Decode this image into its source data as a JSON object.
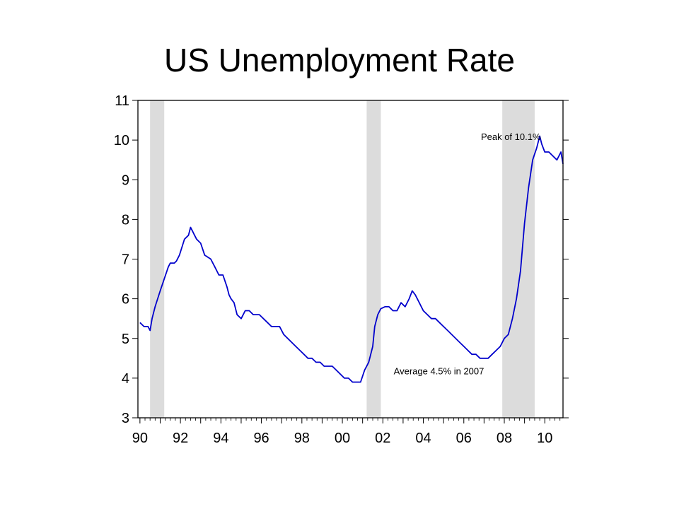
{
  "slide": {
    "title": "US Unemployment Rate"
  },
  "chart_data": {
    "type": "line",
    "title": "US Unemployment Rate",
    "xlabel": "",
    "ylabel": "",
    "xlim": [
      1989.9,
      2010.9
    ],
    "ylim": [
      3,
      11
    ],
    "x_tick_labels": [
      {
        "x": 1990,
        "label": "90"
      },
      {
        "x": 1992,
        "label": "92"
      },
      {
        "x": 1994,
        "label": "94"
      },
      {
        "x": 1996,
        "label": "96"
      },
      {
        "x": 1998,
        "label": "98"
      },
      {
        "x": 2000,
        "label": "00"
      },
      {
        "x": 2002,
        "label": "02"
      },
      {
        "x": 2004,
        "label": "04"
      },
      {
        "x": 2006,
        "label": "06"
      },
      {
        "x": 2008,
        "label": "08"
      },
      {
        "x": 2010,
        "label": "10"
      }
    ],
    "y_ticks": [
      3,
      4,
      5,
      6,
      7,
      8,
      9,
      10,
      11
    ],
    "line_color": "#0000cc",
    "recession_color": "#dcdcdc",
    "recessions": [
      [
        1990.5,
        1991.2
      ],
      [
        2001.2,
        2001.9
      ],
      [
        2007.9,
        2009.5
      ]
    ],
    "annotations": [
      {
        "text": "Peak of 10.1%",
        "x": 2009.8,
        "y": 10.0
      },
      {
        "text": "Average 4.5% in 2007",
        "x": 2007.0,
        "y": 4.1
      }
    ],
    "series": [
      {
        "x": [
          1990.0,
          1990.2,
          1990.4,
          1990.5,
          1990.6,
          1990.75,
          1991.0,
          1991.2,
          1991.4,
          1991.5,
          1991.7,
          1991.8,
          1991.95,
          1992.2,
          1992.4,
          1992.5,
          1992.6,
          1992.7,
          1992.8,
          1993.0,
          1993.2,
          1993.5,
          1993.7,
          1993.9,
          1994.1,
          1994.3,
          1994.4,
          1994.5,
          1994.65,
          1994.8,
          1995.0,
          1995.2,
          1995.4,
          1995.6,
          1995.8,
          1995.9,
          1996.1,
          1996.3,
          1996.5,
          1996.7,
          1996.9,
          1997.1,
          1997.3,
          1997.5,
          1997.7,
          1997.9,
          1998.1,
          1998.3,
          1998.5,
          1998.7,
          1998.9,
          1999.1,
          1999.3,
          1999.5,
          1999.7,
          1999.9,
          2000.1,
          2000.3,
          2000.5,
          2000.7,
          2000.9,
          2001.1,
          2001.3,
          2001.5,
          2001.6,
          2001.75,
          2001.9,
          2002.1,
          2002.3,
          2002.5,
          2002.7,
          2002.9,
          2003.1,
          2003.3,
          2003.45,
          2003.6,
          2003.8,
          2004.0,
          2004.2,
          2004.4,
          2004.6,
          2004.8,
          2005.0,
          2005.2,
          2005.4,
          2005.6,
          2005.8,
          2006.0,
          2006.2,
          2006.4,
          2006.6,
          2006.8,
          2007.0,
          2007.2,
          2007.4,
          2007.6,
          2007.8,
          2008.0,
          2008.2,
          2008.4,
          2008.6,
          2008.8,
          2009.0,
          2009.2,
          2009.4,
          2009.6,
          2009.75,
          2009.85,
          2010.0,
          2010.2,
          2010.4,
          2010.6,
          2010.8,
          2010.9
        ],
        "values": [
          5.4,
          5.3,
          5.3,
          5.2,
          5.5,
          5.8,
          6.2,
          6.5,
          6.8,
          6.9,
          6.9,
          6.95,
          7.1,
          7.5,
          7.6,
          7.8,
          7.7,
          7.6,
          7.5,
          7.4,
          7.1,
          7.0,
          6.8,
          6.6,
          6.6,
          6.3,
          6.1,
          6.0,
          5.9,
          5.6,
          5.5,
          5.7,
          5.7,
          5.6,
          5.6,
          5.6,
          5.5,
          5.4,
          5.3,
          5.3,
          5.3,
          5.1,
          5.0,
          4.9,
          4.8,
          4.7,
          4.6,
          4.5,
          4.5,
          4.4,
          4.4,
          4.3,
          4.3,
          4.3,
          4.2,
          4.1,
          4.0,
          4.0,
          3.9,
          3.9,
          3.9,
          4.2,
          4.4,
          4.8,
          5.3,
          5.6,
          5.75,
          5.8,
          5.8,
          5.7,
          5.7,
          5.9,
          5.8,
          6.0,
          6.2,
          6.1,
          5.9,
          5.7,
          5.6,
          5.5,
          5.5,
          5.4,
          5.3,
          5.2,
          5.1,
          5.0,
          4.9,
          4.8,
          4.7,
          4.6,
          4.6,
          4.5,
          4.5,
          4.5,
          4.6,
          4.7,
          4.8,
          5.0,
          5.1,
          5.5,
          6.0,
          6.7,
          7.9,
          8.8,
          9.5,
          9.8,
          10.1,
          9.9,
          9.7,
          9.7,
          9.6,
          9.5,
          9.7,
          9.4
        ]
      }
    ]
  }
}
